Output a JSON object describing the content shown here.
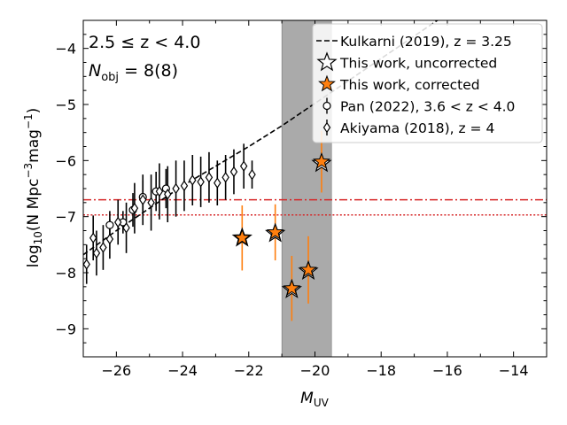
{
  "chart_data": {
    "type": "scatter",
    "xlabel": "M_UV",
    "ylabel": "log10(N Mpc^-3 mag^-1)",
    "xlim": [
      -27,
      -13
    ],
    "ylim": [
      -9.5,
      -3.5
    ],
    "xticks": [
      -26,
      -24,
      -22,
      -20,
      -18,
      -16,
      -14
    ],
    "yticks": [
      -9,
      -8,
      -7,
      -6,
      -5,
      -4
    ],
    "annotations": {
      "redshift": "2.5 ≤ z < 4.0",
      "nobj_label": "N",
      "nobj_sub": "obj",
      "nobj_value": " = 8(8)"
    },
    "shaded_band": {
      "x": [
        -21.0,
        -19.5
      ],
      "color": "#aaaaaa"
    },
    "hlines": [
      {
        "y": -6.7,
        "style": "dashdot",
        "color": "#d62728"
      },
      {
        "y": -6.97,
        "style": "dotted",
        "color": "#d62728"
      }
    ],
    "series": [
      {
        "name": "Kulkarni (2019), z = 3.25",
        "style": "dashed",
        "color": "#000000",
        "points": [
          [
            -27,
            -7.68
          ],
          [
            -26,
            -7.25
          ],
          [
            -25,
            -6.85
          ],
          [
            -24,
            -6.45
          ],
          [
            -23,
            -6.1
          ],
          [
            -22,
            -5.75
          ],
          [
            -21,
            -5.38
          ],
          [
            -20,
            -4.98
          ],
          [
            -19,
            -4.58
          ],
          [
            -18,
            -4.18
          ],
          [
            -17,
            -3.78
          ],
          [
            -16,
            -3.38
          ]
        ]
      },
      {
        "name": "This work, uncorrected",
        "marker": "star-open",
        "color": "#000000",
        "points": [
          {
            "x": -22.2,
            "y": -7.38,
            "err": 0.6
          },
          {
            "x": -21.2,
            "y": -7.3,
            "err": 0.5
          },
          {
            "x": -20.7,
            "y": -8.3,
            "err": 0.6
          },
          {
            "x": -20.2,
            "y": -7.97,
            "err": 0.6
          },
          {
            "x": -19.8,
            "y": -6.05,
            "err": 0.55
          }
        ]
      },
      {
        "name": "This work, corrected",
        "marker": "star-filled",
        "color": "#ff7f0e",
        "errcolor": "#ff7f0e",
        "points": [
          {
            "x": -22.2,
            "y": -7.38,
            "err": 0.58
          },
          {
            "x": -21.2,
            "y": -7.28,
            "err": 0.5
          },
          {
            "x": -20.7,
            "y": -8.28,
            "err": 0.58
          },
          {
            "x": -20.2,
            "y": -7.95,
            "err": 0.6
          },
          {
            "x": -19.8,
            "y": -6.02,
            "err": 0.55
          }
        ]
      },
      {
        "name": "Pan (2022), 3.6 < z < 4.0",
        "marker": "circle-open",
        "color": "#000000",
        "points": [
          {
            "x": -26.2,
            "y": -7.15,
            "err": 0.25
          },
          {
            "x": -25.8,
            "y": -7.1,
            "err": 0.2
          },
          {
            "x": -25.5,
            "y": -6.88,
            "err": 0.3
          },
          {
            "x": -25.2,
            "y": -6.65,
            "err": 0.3
          },
          {
            "x": -24.8,
            "y": -6.55,
            "err": 0.35
          },
          {
            "x": -24.5,
            "y": -6.5,
            "err": 0.35
          }
        ]
      },
      {
        "name": "Akiyama (2018), z = 4",
        "marker": "diamond-open",
        "color": "#000000",
        "points": [
          {
            "x": -26.9,
            "y": -7.85,
            "err": 0.35
          },
          {
            "x": -26.7,
            "y": -7.38,
            "err": 0.4
          },
          {
            "x": -26.6,
            "y": -7.65,
            "err": 0.4
          },
          {
            "x": -26.4,
            "y": -7.55,
            "err": 0.4
          },
          {
            "x": -26.2,
            "y": -7.4,
            "err": 0.35
          },
          {
            "x": -25.95,
            "y": -7.1,
            "err": 0.4
          },
          {
            "x": -25.7,
            "y": -7.2,
            "err": 0.45
          },
          {
            "x": -25.45,
            "y": -6.85,
            "err": 0.45
          },
          {
            "x": -25.2,
            "y": -6.7,
            "err": 0.45
          },
          {
            "x": -24.95,
            "y": -6.75,
            "err": 0.5
          },
          {
            "x": -24.7,
            "y": -6.55,
            "err": 0.5
          },
          {
            "x": -24.45,
            "y": -6.6,
            "err": 0.5
          },
          {
            "x": -24.2,
            "y": -6.5,
            "err": 0.5
          },
          {
            "x": -23.95,
            "y": -6.45,
            "err": 0.45
          },
          {
            "x": -23.7,
            "y": -6.35,
            "err": 0.45
          },
          {
            "x": -23.45,
            "y": -6.38,
            "err": 0.45
          },
          {
            "x": -23.2,
            "y": -6.3,
            "err": 0.45
          },
          {
            "x": -22.95,
            "y": -6.4,
            "err": 0.4
          },
          {
            "x": -22.7,
            "y": -6.3,
            "err": 0.4
          },
          {
            "x": -22.45,
            "y": -6.2,
            "err": 0.4
          },
          {
            "x": -22.15,
            "y": -6.1,
            "err": 0.4
          },
          {
            "x": -21.9,
            "y": -6.25,
            "err": 0.25
          }
        ]
      }
    ],
    "legend": {
      "placement": "top-right"
    }
  }
}
